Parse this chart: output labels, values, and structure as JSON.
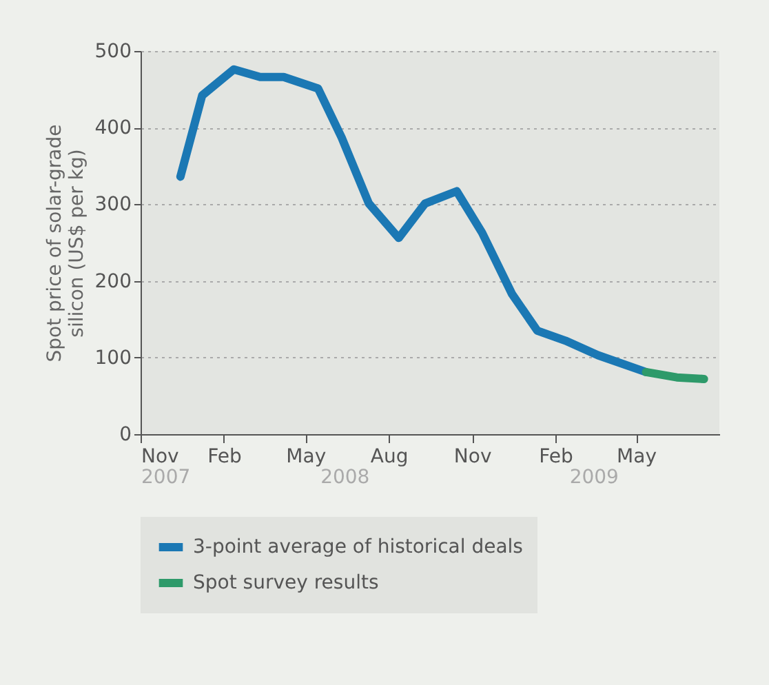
{
  "chart_data": {
    "type": "line",
    "ylabel": "Spot price of solar-grade\nsilicon (US$ per kg)",
    "xlim": [
      "2007-11-01",
      "2009-08-01"
    ],
    "xticks": [
      {
        "value": "2007-11-01",
        "label": "Nov"
      },
      {
        "value": "2008-02-01",
        "label": "Feb"
      },
      {
        "value": "2008-05-01",
        "label": "May"
      },
      {
        "value": "2008-08-01",
        "label": "Aug"
      },
      {
        "value": "2008-11-01",
        "label": "Nov"
      },
      {
        "value": "2009-02-01",
        "label": "Feb"
      },
      {
        "value": "2009-05-01",
        "label": "May"
      }
    ],
    "x2lim": [
      "2007-11-01",
      "2009-08-01"
    ],
    "x2ticks": [
      {
        "value": "2007-11-01",
        "label": "2007"
      },
      {
        "value": "2008-06-13",
        "label": "2008"
      },
      {
        "value": "2009-03-15",
        "label": "2009"
      }
    ],
    "ylim": [
      0,
      500
    ],
    "yticks": [
      0,
      100,
      200,
      300,
      400,
      500
    ],
    "grid": "y",
    "legend": "bottom",
    "line_style": "solid",
    "series": [
      {
        "name": "3-point average of historical deals",
        "color": "#1b78b4",
        "x": [
          "2007-12-15",
          "2008-01-08",
          "2008-02-12",
          "2008-03-12",
          "2008-04-07",
          "2008-05-15",
          "2008-06-10",
          "2008-07-10",
          "2008-08-12",
          "2008-09-10",
          "2008-10-15",
          "2008-11-12",
          "2008-12-15",
          "2009-01-12",
          "2009-02-12",
          "2009-03-20",
          "2009-05-12"
        ],
        "values": [
          336,
          442,
          476,
          466,
          466,
          451,
          387,
          301,
          256,
          301,
          317,
          263,
          183,
          135,
          122,
          103,
          81
        ]
      },
      {
        "name": "Spot survey results",
        "color": "#2e9a6a",
        "x": [
          "2009-05-12",
          "2009-06-15",
          "2009-07-15"
        ],
        "values": [
          81,
          74,
          72
        ]
      }
    ]
  }
}
